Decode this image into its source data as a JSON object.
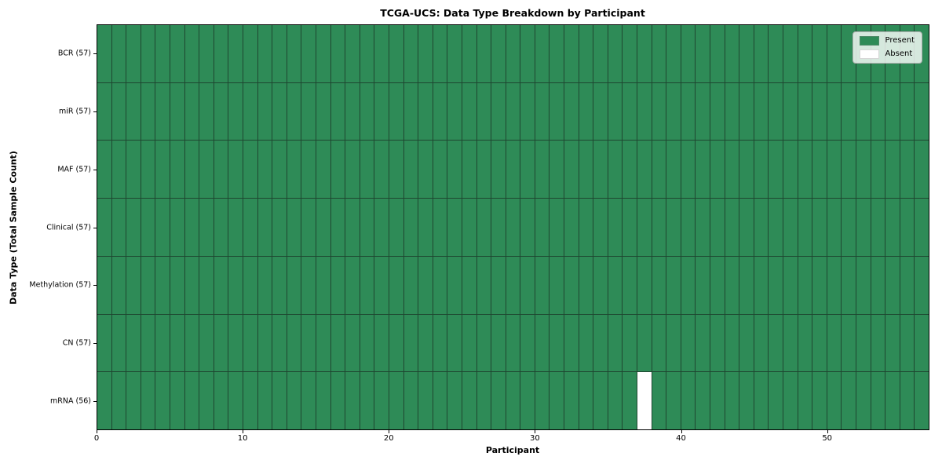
{
  "chart_data": {
    "type": "heatmap",
    "title": "TCGA-UCS: Data Type Breakdown by Participant",
    "xlabel": "Participant",
    "ylabel": "Data Type (Total Sample Count)",
    "x_ticks": [
      0,
      10,
      20,
      30,
      40,
      50
    ],
    "xlim": [
      0,
      57
    ],
    "n_participants": 57,
    "n_rows": 7,
    "grid_visible": true,
    "legend_position": "upper right",
    "rows": [
      {
        "label": "BCR (57)",
        "present_count": 57,
        "absent_columns": []
      },
      {
        "label": "miR (57)",
        "present_count": 57,
        "absent_columns": []
      },
      {
        "label": "MAF (57)",
        "present_count": 57,
        "absent_columns": []
      },
      {
        "label": "Clinical (57)",
        "present_count": 57,
        "absent_columns": []
      },
      {
        "label": "Methylation (57)",
        "present_count": 57,
        "absent_columns": []
      },
      {
        "label": "CN (57)",
        "present_count": 57,
        "absent_columns": []
      },
      {
        "label": "mRNA (56)",
        "present_count": 56,
        "absent_columns": [
          37
        ]
      }
    ],
    "legend": [
      {
        "label": "Present",
        "color": "#2e8b57"
      },
      {
        "label": "Absent",
        "color": "#ffffff"
      }
    ],
    "colors": {
      "present": "#2e8b57",
      "absent": "#ffffff",
      "grid_line": "#1e4630",
      "spine": "#000000",
      "background": "#ffffff"
    }
  }
}
